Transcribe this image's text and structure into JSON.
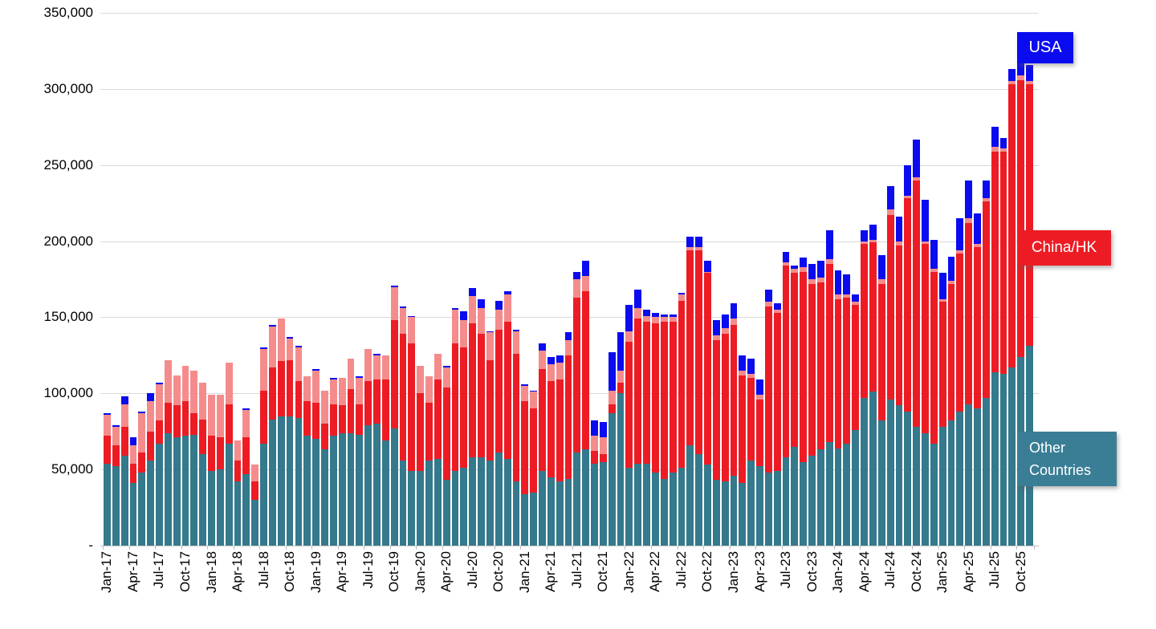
{
  "chart_data": {
    "type": "bar",
    "stacked": true,
    "title": "",
    "xlabel": "",
    "ylabel": "",
    "grid": true,
    "values_unit_multiplier": 1000,
    "ylim": [
      0,
      350000
    ],
    "y_axis": {
      "tick_labels": [
        "350,000",
        "300,000",
        "250,000",
        "200,000",
        "150,000",
        "100,000",
        "50,000",
        "-"
      ],
      "tick_values": [
        350,
        300,
        250,
        200,
        150,
        100,
        50,
        0
      ]
    },
    "x_axis": {
      "label_every_n_months": 3,
      "shown_tick_labels": [
        "Jan-17",
        "Apr-17",
        "Jul-17",
        "Oct-17",
        "Jan-18",
        "Apr-18",
        "Jul-18",
        "Oct-18",
        "Jan-19",
        "Apr-19",
        "Jul-19",
        "Oct-19",
        "Jan-20",
        "Apr-20",
        "Jul-20",
        "Oct-20",
        "Jan-21",
        "Apr-21",
        "Jul-21",
        "Oct-21",
        "Jan-22",
        "Apr-22",
        "Jul-22",
        "Oct-22",
        "Jan-23",
        "Apr-23",
        "Jul-23",
        "Oct-23",
        "Jan-24",
        "Apr-24",
        "Jul-24",
        "Oct-24",
        "Jan-25",
        "Apr-25",
        "Jul-25",
        "Oct-25"
      ]
    },
    "categories": [
      "Jan-17",
      "Feb-17",
      "Mar-17",
      "Apr-17",
      "May-17",
      "Jun-17",
      "Jul-17",
      "Aug-17",
      "Sep-17",
      "Oct-17",
      "Nov-17",
      "Dec-17",
      "Jan-18",
      "Feb-18",
      "Mar-18",
      "Apr-18",
      "May-18",
      "Jun-18",
      "Jul-18",
      "Aug-18",
      "Sep-18",
      "Oct-18",
      "Nov-18",
      "Dec-18",
      "Jan-19",
      "Feb-19",
      "Mar-19",
      "Apr-19",
      "May-19",
      "Jun-19",
      "Jul-19",
      "Aug-19",
      "Sep-19",
      "Oct-19",
      "Nov-19",
      "Dec-19",
      "Jan-20",
      "Feb-20",
      "Mar-20",
      "Apr-20",
      "May-20",
      "Jun-20",
      "Jul-20",
      "Aug-20",
      "Sep-20",
      "Oct-20",
      "Nov-20",
      "Dec-20",
      "Jan-21",
      "Feb-21",
      "Mar-21",
      "Apr-21",
      "May-21",
      "Jun-21",
      "Jul-21",
      "Aug-21",
      "Sep-21",
      "Oct-21",
      "Nov-21",
      "Dec-21",
      "Jan-22",
      "Feb-22",
      "Mar-22",
      "Apr-22",
      "May-22",
      "Jun-22",
      "Jul-22",
      "Aug-22",
      "Sep-22",
      "Oct-22",
      "Nov-22",
      "Dec-22",
      "Jan-23",
      "Feb-23",
      "Mar-23",
      "Apr-23",
      "May-23",
      "Jun-23",
      "Jul-23",
      "Aug-23",
      "Sep-23",
      "Oct-23",
      "Nov-23",
      "Dec-23",
      "Jan-24",
      "Feb-24",
      "Mar-24",
      "Apr-24",
      "May-24",
      "Jun-24",
      "Jul-24",
      "Aug-24",
      "Sep-24",
      "Oct-24",
      "Nov-24",
      "Dec-24",
      "Jan-25",
      "Feb-25",
      "Mar-25",
      "Apr-25",
      "May-25",
      "Jun-25",
      "Jul-25",
      "Aug-25",
      "Sep-25",
      "Oct-25",
      "Nov-25"
    ],
    "series": [
      {
        "name": "Other Countries",
        "color": "#34798C",
        "values": [
          54,
          52,
          59,
          41,
          48,
          56,
          67,
          74,
          71,
          72,
          73,
          60,
          49,
          50,
          67,
          42,
          47,
          30,
          67,
          83,
          85,
          85,
          84,
          72,
          70,
          63,
          72,
          74,
          74,
          73,
          79,
          80,
          69,
          77,
          56,
          49,
          49,
          56,
          57,
          43,
          49,
          51,
          58,
          58,
          56,
          61,
          57,
          42,
          34,
          35,
          49,
          45,
          42,
          44,
          61,
          63,
          54,
          55,
          87,
          100,
          51,
          54,
          54,
          48,
          44,
          48,
          51,
          66,
          60,
          53,
          43,
          42,
          46,
          41,
          56,
          52,
          48,
          49,
          58,
          65,
          55,
          59,
          63,
          68,
          64,
          67,
          76,
          97,
          101,
          82,
          96,
          92,
          88,
          78,
          74,
          67,
          78,
          82,
          88,
          93,
          90,
          97,
          114,
          113,
          117,
          124,
          131
        ]
      },
      {
        "name": "China/HK",
        "color": "#ED1C24",
        "values": [
          18,
          14,
          19,
          13,
          13,
          19,
          15,
          20,
          21,
          23,
          14,
          23,
          23,
          21,
          26,
          14,
          24,
          12,
          35,
          34,
          36,
          37,
          24,
          23,
          24,
          17,
          21,
          18,
          29,
          20,
          29,
          29,
          40,
          71,
          83,
          84,
          51,
          38,
          52,
          61,
          84,
          79,
          88,
          81,
          66,
          81,
          90,
          84,
          61,
          55,
          67,
          63,
          67,
          81,
          102,
          104,
          8,
          5,
          6,
          7,
          83,
          95,
          93,
          98,
          103,
          99,
          110,
          128,
          134,
          126,
          92,
          97,
          99,
          71,
          54,
          44,
          109,
          104,
          126,
          114,
          125,
          113,
          110,
          117,
          98,
          96,
          82,
          101,
          98,
          90,
          121,
          105,
          140,
          162,
          124,
          113,
          82,
          90,
          104,
          119,
          106,
          129,
          145,
          146,
          186,
          182,
          172
        ]
      },
      {
        "name": "",
        "note": "unlabeled light-pink segment stacked above China/HK",
        "color": "#F48C8C",
        "values": [
          14,
          12,
          15,
          12,
          26,
          20,
          24,
          28,
          20,
          23,
          28,
          24,
          27,
          28,
          27,
          13,
          18,
          11,
          27,
          27,
          28,
          14,
          22,
          16,
          21,
          22,
          16,
          18,
          20,
          17,
          21,
          16,
          16,
          22,
          17,
          17,
          18,
          17,
          17,
          13,
          22,
          18,
          18,
          17,
          18,
          13,
          18,
          15,
          10,
          11,
          12,
          11,
          11,
          10,
          12,
          10,
          10,
          11,
          9,
          8,
          7,
          7,
          4,
          4,
          3,
          3,
          4,
          2,
          2,
          1,
          3,
          4,
          4,
          3,
          3,
          3,
          3,
          2,
          2,
          3,
          3,
          3,
          3,
          3,
          3,
          2,
          2,
          2,
          2,
          3,
          4,
          3,
          2,
          2,
          2,
          2,
          2,
          2,
          2,
          3,
          2,
          2,
          3,
          2,
          2,
          3,
          2
        ]
      },
      {
        "name": "USA",
        "color": "#0B0BEF",
        "values": [
          1,
          1,
          5,
          5,
          1,
          5,
          1,
          0,
          0,
          0,
          0,
          0,
          0,
          0,
          0,
          0,
          1,
          0,
          1,
          1,
          0,
          1,
          1,
          0,
          1,
          0,
          1,
          0,
          0,
          1,
          0,
          1,
          0,
          1,
          1,
          1,
          0,
          0,
          0,
          1,
          1,
          6,
          5,
          6,
          1,
          6,
          2,
          1,
          1,
          1,
          5,
          5,
          5,
          5,
          5,
          10,
          10,
          10,
          25,
          25,
          17,
          12,
          4,
          3,
          2,
          2,
          1,
          7,
          7,
          7,
          10,
          9,
          10,
          10,
          10,
          10,
          8,
          4,
          7,
          2,
          6,
          10,
          11,
          19,
          16,
          13,
          5,
          7,
          10,
          16,
          15,
          16,
          20,
          25,
          27,
          19,
          17,
          16,
          21,
          25,
          20,
          12,
          13,
          7,
          8,
          10,
          11
        ]
      }
    ],
    "callouts": [
      {
        "label": "USA",
        "color": "#0B0BEF",
        "position": "top-right"
      },
      {
        "label": "China/HK",
        "color": "#ED1C24",
        "position": "middle-right"
      },
      {
        "label": "Other Countries",
        "color": "#3A7E96",
        "position": "bottom-right"
      }
    ],
    "legend_position": "right-callouts"
  }
}
